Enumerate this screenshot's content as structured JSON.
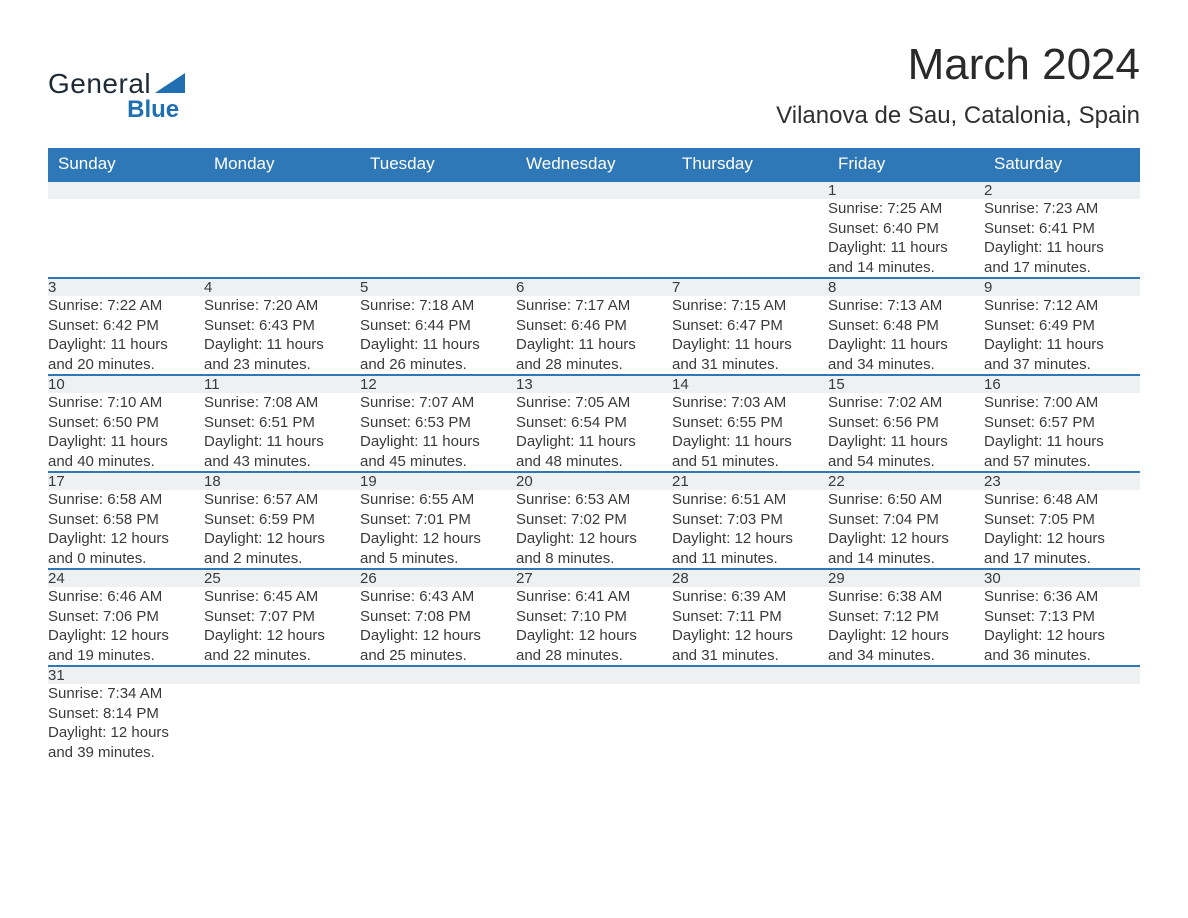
{
  "logo": {
    "word1": "General",
    "word2": "Blue",
    "triangle_color": "#1f6fb2",
    "text_color_dark": "#1e2a36"
  },
  "title": "March 2024",
  "subtitle": "Vilanova de Sau, Catalonia, Spain",
  "header_bg": "#2f78b7",
  "daynum_bg": "#eef0f1",
  "days_of_week": [
    "Sunday",
    "Monday",
    "Tuesday",
    "Wednesday",
    "Thursday",
    "Friday",
    "Saturday"
  ],
  "weeks": [
    [
      null,
      null,
      null,
      null,
      null,
      {
        "n": "1",
        "sunrise": "Sunrise: 7:25 AM",
        "sunset": "Sunset: 6:40 PM",
        "d1": "Daylight: 11 hours",
        "d2": "and 14 minutes."
      },
      {
        "n": "2",
        "sunrise": "Sunrise: 7:23 AM",
        "sunset": "Sunset: 6:41 PM",
        "d1": "Daylight: 11 hours",
        "d2": "and 17 minutes."
      }
    ],
    [
      {
        "n": "3",
        "sunrise": "Sunrise: 7:22 AM",
        "sunset": "Sunset: 6:42 PM",
        "d1": "Daylight: 11 hours",
        "d2": "and 20 minutes."
      },
      {
        "n": "4",
        "sunrise": "Sunrise: 7:20 AM",
        "sunset": "Sunset: 6:43 PM",
        "d1": "Daylight: 11 hours",
        "d2": "and 23 minutes."
      },
      {
        "n": "5",
        "sunrise": "Sunrise: 7:18 AM",
        "sunset": "Sunset: 6:44 PM",
        "d1": "Daylight: 11 hours",
        "d2": "and 26 minutes."
      },
      {
        "n": "6",
        "sunrise": "Sunrise: 7:17 AM",
        "sunset": "Sunset: 6:46 PM",
        "d1": "Daylight: 11 hours",
        "d2": "and 28 minutes."
      },
      {
        "n": "7",
        "sunrise": "Sunrise: 7:15 AM",
        "sunset": "Sunset: 6:47 PM",
        "d1": "Daylight: 11 hours",
        "d2": "and 31 minutes."
      },
      {
        "n": "8",
        "sunrise": "Sunrise: 7:13 AM",
        "sunset": "Sunset: 6:48 PM",
        "d1": "Daylight: 11 hours",
        "d2": "and 34 minutes."
      },
      {
        "n": "9",
        "sunrise": "Sunrise: 7:12 AM",
        "sunset": "Sunset: 6:49 PM",
        "d1": "Daylight: 11 hours",
        "d2": "and 37 minutes."
      }
    ],
    [
      {
        "n": "10",
        "sunrise": "Sunrise: 7:10 AM",
        "sunset": "Sunset: 6:50 PM",
        "d1": "Daylight: 11 hours",
        "d2": "and 40 minutes."
      },
      {
        "n": "11",
        "sunrise": "Sunrise: 7:08 AM",
        "sunset": "Sunset: 6:51 PM",
        "d1": "Daylight: 11 hours",
        "d2": "and 43 minutes."
      },
      {
        "n": "12",
        "sunrise": "Sunrise: 7:07 AM",
        "sunset": "Sunset: 6:53 PM",
        "d1": "Daylight: 11 hours",
        "d2": "and 45 minutes."
      },
      {
        "n": "13",
        "sunrise": "Sunrise: 7:05 AM",
        "sunset": "Sunset: 6:54 PM",
        "d1": "Daylight: 11 hours",
        "d2": "and 48 minutes."
      },
      {
        "n": "14",
        "sunrise": "Sunrise: 7:03 AM",
        "sunset": "Sunset: 6:55 PM",
        "d1": "Daylight: 11 hours",
        "d2": "and 51 minutes."
      },
      {
        "n": "15",
        "sunrise": "Sunrise: 7:02 AM",
        "sunset": "Sunset: 6:56 PM",
        "d1": "Daylight: 11 hours",
        "d2": "and 54 minutes."
      },
      {
        "n": "16",
        "sunrise": "Sunrise: 7:00 AM",
        "sunset": "Sunset: 6:57 PM",
        "d1": "Daylight: 11 hours",
        "d2": "and 57 minutes."
      }
    ],
    [
      {
        "n": "17",
        "sunrise": "Sunrise: 6:58 AM",
        "sunset": "Sunset: 6:58 PM",
        "d1": "Daylight: 12 hours",
        "d2": "and 0 minutes."
      },
      {
        "n": "18",
        "sunrise": "Sunrise: 6:57 AM",
        "sunset": "Sunset: 6:59 PM",
        "d1": "Daylight: 12 hours",
        "d2": "and 2 minutes."
      },
      {
        "n": "19",
        "sunrise": "Sunrise: 6:55 AM",
        "sunset": "Sunset: 7:01 PM",
        "d1": "Daylight: 12 hours",
        "d2": "and 5 minutes."
      },
      {
        "n": "20",
        "sunrise": "Sunrise: 6:53 AM",
        "sunset": "Sunset: 7:02 PM",
        "d1": "Daylight: 12 hours",
        "d2": "and 8 minutes."
      },
      {
        "n": "21",
        "sunrise": "Sunrise: 6:51 AM",
        "sunset": "Sunset: 7:03 PM",
        "d1": "Daylight: 12 hours",
        "d2": "and 11 minutes."
      },
      {
        "n": "22",
        "sunrise": "Sunrise: 6:50 AM",
        "sunset": "Sunset: 7:04 PM",
        "d1": "Daylight: 12 hours",
        "d2": "and 14 minutes."
      },
      {
        "n": "23",
        "sunrise": "Sunrise: 6:48 AM",
        "sunset": "Sunset: 7:05 PM",
        "d1": "Daylight: 12 hours",
        "d2": "and 17 minutes."
      }
    ],
    [
      {
        "n": "24",
        "sunrise": "Sunrise: 6:46 AM",
        "sunset": "Sunset: 7:06 PM",
        "d1": "Daylight: 12 hours",
        "d2": "and 19 minutes."
      },
      {
        "n": "25",
        "sunrise": "Sunrise: 6:45 AM",
        "sunset": "Sunset: 7:07 PM",
        "d1": "Daylight: 12 hours",
        "d2": "and 22 minutes."
      },
      {
        "n": "26",
        "sunrise": "Sunrise: 6:43 AM",
        "sunset": "Sunset: 7:08 PM",
        "d1": "Daylight: 12 hours",
        "d2": "and 25 minutes."
      },
      {
        "n": "27",
        "sunrise": "Sunrise: 6:41 AM",
        "sunset": "Sunset: 7:10 PM",
        "d1": "Daylight: 12 hours",
        "d2": "and 28 minutes."
      },
      {
        "n": "28",
        "sunrise": "Sunrise: 6:39 AM",
        "sunset": "Sunset: 7:11 PM",
        "d1": "Daylight: 12 hours",
        "d2": "and 31 minutes."
      },
      {
        "n": "29",
        "sunrise": "Sunrise: 6:38 AM",
        "sunset": "Sunset: 7:12 PM",
        "d1": "Daylight: 12 hours",
        "d2": "and 34 minutes."
      },
      {
        "n": "30",
        "sunrise": "Sunrise: 6:36 AM",
        "sunset": "Sunset: 7:13 PM",
        "d1": "Daylight: 12 hours",
        "d2": "and 36 minutes."
      }
    ],
    [
      {
        "n": "31",
        "sunrise": "Sunrise: 7:34 AM",
        "sunset": "Sunset: 8:14 PM",
        "d1": "Daylight: 12 hours",
        "d2": "and 39 minutes."
      },
      null,
      null,
      null,
      null,
      null,
      null
    ]
  ]
}
